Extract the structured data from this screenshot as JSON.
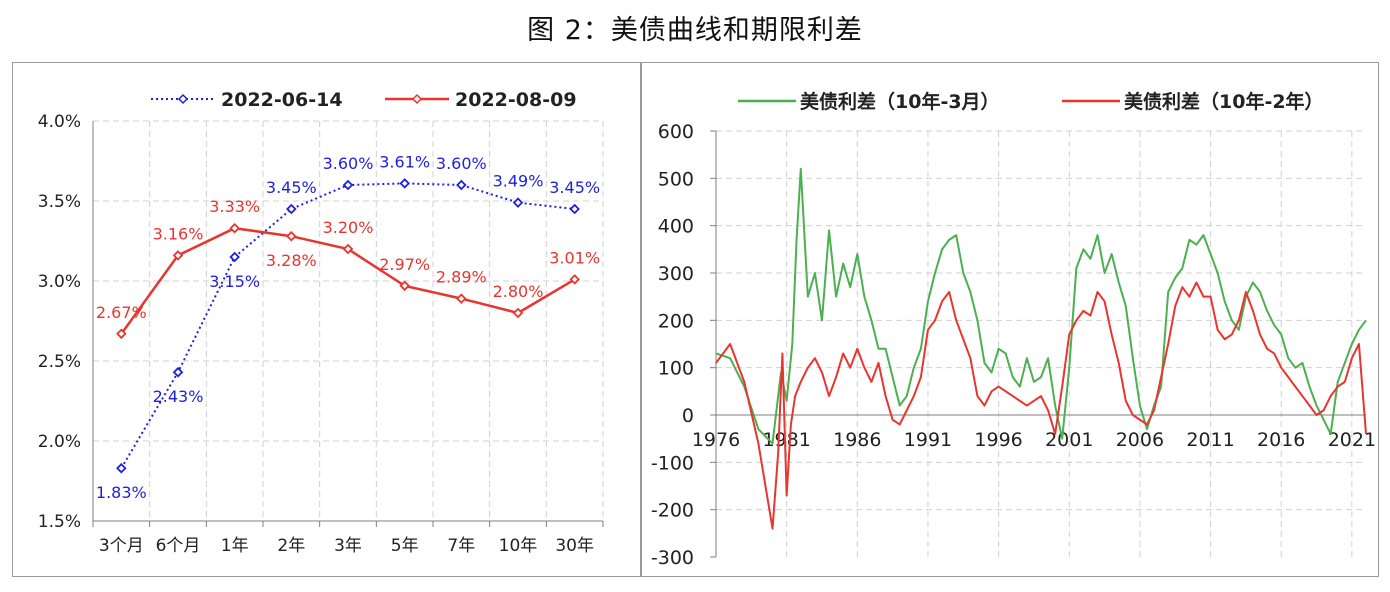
{
  "figure_title": "图 2：美债曲线和期限利差",
  "colors": {
    "blue": "#1f1fe0",
    "red": "#e8352e",
    "green": "#4caf50",
    "grid": "#d0d0d0",
    "axis": "#7f7f7f"
  },
  "chart_data": [
    {
      "type": "line",
      "panel": "left",
      "title": "",
      "categories": [
        "3个月",
        "6个月",
        "1年",
        "2年",
        "3年",
        "5年",
        "7年",
        "10年",
        "30年"
      ],
      "ylim": [
        1.5,
        4.0
      ],
      "yticks": [
        1.5,
        2.0,
        2.5,
        3.0,
        3.5,
        4.0
      ],
      "ytick_labels": [
        "1.5%",
        "2.0%",
        "2.5%",
        "3.0%",
        "3.5%",
        "4.0%"
      ],
      "series": [
        {
          "name": "2022-06-14",
          "style": "dotted",
          "color": "#1f1fe0",
          "values": [
            1.83,
            2.43,
            3.15,
            3.45,
            3.6,
            3.61,
            3.6,
            3.49,
            3.45
          ],
          "labels": [
            "1.83%",
            "2.43%",
            "3.15%",
            "3.45%",
            "3.60%",
            "3.61%",
            "3.60%",
            "3.49%",
            "3.45%"
          ],
          "label_pos": [
            "below",
            "below",
            "below",
            "above",
            "above",
            "above",
            "above",
            "above",
            "above"
          ]
        },
        {
          "name": "2022-08-09",
          "style": "solid",
          "color": "#e8352e",
          "values": [
            2.67,
            3.16,
            3.33,
            3.28,
            3.2,
            2.97,
            2.89,
            2.8,
            3.01
          ],
          "labels": [
            "2.67%",
            "3.16%",
            "3.33%",
            "3.28%",
            "3.20%",
            "2.97%",
            "2.89%",
            "2.80%",
            "3.01%"
          ],
          "label_pos": [
            "above",
            "above",
            "above",
            "below",
            "above",
            "above",
            "above",
            "above",
            "above"
          ]
        }
      ]
    },
    {
      "type": "line",
      "panel": "right",
      "title": "",
      "ylim": [
        -300,
        600
      ],
      "yticks": [
        -300,
        -200,
        -100,
        0,
        100,
        200,
        300,
        400,
        500,
        600
      ],
      "xlim": [
        1976,
        2022
      ],
      "xticks": [
        1976,
        1981,
        1986,
        1991,
        1996,
        2001,
        2006,
        2011,
        2016,
        2021
      ],
      "series": [
        {
          "name": "美债利差（10年-3月）",
          "color": "#4caf50",
          "x": [
            1976,
            1977,
            1978,
            1979,
            1980,
            1980.6,
            1981,
            1981.4,
            1981.7,
            1982,
            1982.5,
            1983,
            1983.5,
            1984,
            1984.5,
            1985,
            1985.5,
            1986,
            1986.5,
            1987,
            1987.5,
            1988,
            1988.5,
            1989,
            1989.5,
            1990,
            1990.5,
            1991,
            1991.5,
            1992,
            1992.5,
            1993,
            1993.5,
            1994,
            1994.5,
            1995,
            1995.5,
            1996,
            1996.5,
            1997,
            1997.5,
            1998,
            1998.5,
            1999,
            1999.5,
            2000,
            2000.5,
            2001,
            2001.5,
            2002,
            2002.5,
            2003,
            2003.5,
            2004,
            2004.5,
            2005,
            2005.5,
            2006,
            2006.5,
            2007,
            2007.5,
            2008,
            2008.5,
            2009,
            2009.5,
            2010,
            2010.5,
            2011,
            2011.5,
            2012,
            2012.5,
            2013,
            2013.5,
            2014,
            2014.5,
            2015,
            2015.5,
            2016,
            2016.5,
            2017,
            2017.5,
            2018,
            2018.5,
            2019,
            2019.5,
            2020,
            2020.5,
            2021,
            2021.5,
            2022
          ],
          "values": [
            130,
            120,
            60,
            -30,
            -60,
            90,
            30,
            150,
            370,
            520,
            250,
            300,
            200,
            390,
            250,
            320,
            270,
            340,
            250,
            200,
            140,
            140,
            80,
            20,
            40,
            100,
            140,
            240,
            300,
            350,
            370,
            380,
            300,
            260,
            200,
            110,
            90,
            140,
            130,
            80,
            60,
            120,
            70,
            80,
            120,
            20,
            -50,
            100,
            310,
            350,
            330,
            380,
            300,
            340,
            280,
            230,
            120,
            20,
            -30,
            20,
            60,
            260,
            290,
            310,
            370,
            360,
            380,
            340,
            300,
            240,
            200,
            180,
            250,
            280,
            260,
            220,
            190,
            170,
            120,
            100,
            110,
            60,
            20,
            -10,
            -40,
            70,
            110,
            150,
            180,
            200
          ]
        },
        {
          "name": "美债利差（10年-2年）",
          "color": "#e8352e",
          "x": [
            1976,
            1977,
            1978,
            1979,
            1980,
            1980.4,
            1980.7,
            1981,
            1981.3,
            1981.6,
            1982,
            1982.5,
            1983,
            1983.5,
            1984,
            1984.5,
            1985,
            1985.5,
            1986,
            1986.5,
            1987,
            1987.5,
            1988,
            1988.5,
            1989,
            1989.5,
            1990,
            1990.5,
            1991,
            1991.5,
            1992,
            1992.5,
            1993,
            1993.5,
            1994,
            1994.5,
            1995,
            1995.5,
            1996,
            1996.5,
            1997,
            1997.5,
            1998,
            1998.5,
            1999,
            1999.5,
            2000,
            2000.5,
            2001,
            2001.5,
            2002,
            2002.5,
            2003,
            2003.5,
            2004,
            2004.5,
            2005,
            2005.5,
            2006,
            2006.5,
            2007,
            2007.5,
            2008,
            2008.5,
            2009,
            2009.5,
            2010,
            2010.5,
            2011,
            2011.5,
            2012,
            2012.5,
            2013,
            2013.5,
            2014,
            2014.5,
            2015,
            2015.5,
            2016,
            2016.5,
            2017,
            2017.5,
            2018,
            2018.5,
            2019,
            2019.5,
            2020,
            2020.5,
            2021,
            2021.5,
            2022
          ],
          "values": [
            110,
            150,
            70,
            -60,
            -240,
            -80,
            130,
            -170,
            -20,
            40,
            70,
            100,
            120,
            90,
            40,
            80,
            130,
            100,
            140,
            100,
            70,
            110,
            40,
            -10,
            -20,
            10,
            40,
            80,
            180,
            200,
            240,
            260,
            200,
            160,
            120,
            40,
            20,
            50,
            60,
            50,
            40,
            30,
            20,
            30,
            40,
            10,
            -40,
            60,
            170,
            200,
            220,
            210,
            260,
            240,
            170,
            110,
            30,
            0,
            -10,
            -20,
            10,
            80,
            150,
            230,
            270,
            250,
            280,
            250,
            250,
            180,
            160,
            170,
            200,
            260,
            220,
            170,
            140,
            130,
            100,
            80,
            60,
            40,
            20,
            0,
            10,
            40,
            60,
            70,
            120,
            150,
            -40
          ]
        }
      ]
    }
  ]
}
